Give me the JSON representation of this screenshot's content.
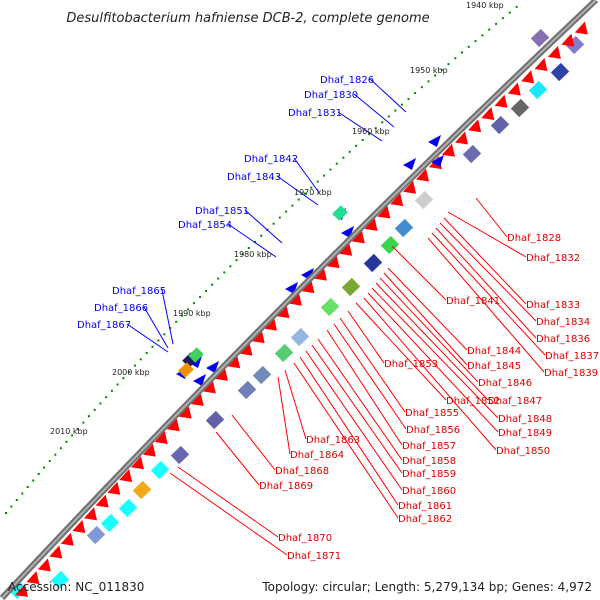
{
  "title": "Desulfitobacterium hafniense DCB-2, complete genome",
  "footer": {
    "accession": "Accession: NC_011830",
    "topology": "Topology: circular; Length: 5,279,134 bp; Genes: 4,972"
  },
  "colors": {
    "backbone": "#888888",
    "gene_forward": "#ff0000",
    "gene_reverse": "#0000ee",
    "leader_forward": "#ff0000",
    "leader_reverse": "#0000ff",
    "tick_mark": "#008800"
  },
  "ticks": [
    {
      "label": "1940 kbp"
    },
    {
      "label": "1950 kbp"
    },
    {
      "label": "1960 kbp"
    },
    {
      "label": "1970 kbp"
    },
    {
      "label": "1980 kbp"
    },
    {
      "label": "1990 kbp"
    },
    {
      "label": "2000 kbp"
    },
    {
      "label": "2010 kbp"
    }
  ],
  "reverse_labels": [
    {
      "text": "Dhaf_1826"
    },
    {
      "text": "Dhaf_1830"
    },
    {
      "text": "Dhaf_1831"
    },
    {
      "text": "Dhaf_1842"
    },
    {
      "text": "Dhaf_1843"
    },
    {
      "text": "Dhaf_1851"
    },
    {
      "text": "Dhaf_1854"
    },
    {
      "text": "Dhaf_1865"
    },
    {
      "text": "Dhaf_1866"
    },
    {
      "text": "Dhaf_1867"
    }
  ],
  "forward_labels": [
    {
      "text": "Dhaf_1828"
    },
    {
      "text": "Dhaf_1832"
    },
    {
      "text": "Dhaf_1833"
    },
    {
      "text": "Dhaf_1834"
    },
    {
      "text": "Dhaf_1836"
    },
    {
      "text": "Dhaf_1837"
    },
    {
      "text": "Dhaf_1839"
    },
    {
      "text": "Dhaf_1841"
    },
    {
      "text": "Dhaf_1844"
    },
    {
      "text": "Dhaf_1845"
    },
    {
      "text": "Dhaf_1846"
    },
    {
      "text": "Dhaf_1847"
    },
    {
      "text": "Dhaf_1848"
    },
    {
      "text": "Dhaf_1849"
    },
    {
      "text": "Dhaf_1850"
    },
    {
      "text": "Dhaf_1852"
    },
    {
      "text": "Dhaf_1853"
    },
    {
      "text": "Dhaf_1855"
    },
    {
      "text": "Dhaf_1856"
    },
    {
      "text": "Dhaf_1857"
    },
    {
      "text": "Dhaf_1858"
    },
    {
      "text": "Dhaf_1859"
    },
    {
      "text": "Dhaf_1860"
    },
    {
      "text": "Dhaf_1861"
    },
    {
      "text": "Dhaf_1862"
    },
    {
      "text": "Dhaf_1863"
    },
    {
      "text": "Dhaf_1864"
    },
    {
      "text": "Dhaf_1868"
    },
    {
      "text": "Dhaf_1869"
    },
    {
      "text": "Dhaf_1870"
    },
    {
      "text": "Dhaf_1871"
    }
  ]
}
